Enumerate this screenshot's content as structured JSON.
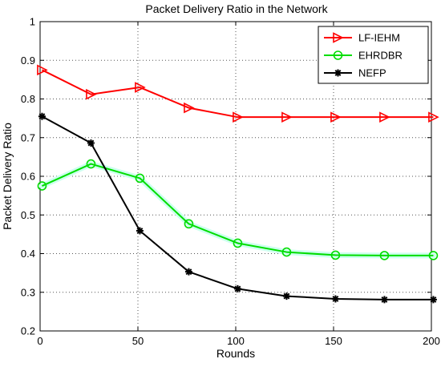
{
  "chart_data": {
    "type": "line",
    "title": "Packet Delivery Ratio in the Network",
    "xlabel": "Rounds",
    "ylabel": "Packet Delivery Ratio",
    "xlim": [
      0,
      200
    ],
    "ylim": [
      0.2,
      1
    ],
    "x_ticks": [
      "0",
      "50",
      "100",
      "150",
      "200"
    ],
    "y_ticks": [
      "0.2",
      "0.3",
      "0.4",
      "0.5",
      "0.6",
      "0.7",
      "0.8",
      "0.9",
      "1"
    ],
    "grid": true,
    "legend_position": "top-right",
    "x": [
      1,
      26,
      51,
      76,
      101,
      126,
      151,
      176,
      201
    ],
    "series": [
      {
        "name": "LF-IEHM",
        "color": "#ff0000",
        "marker": "triangle-right",
        "values": [
          0.875,
          0.812,
          0.83,
          0.777,
          0.753,
          0.753,
          0.753,
          0.753,
          0.753
        ]
      },
      {
        "name": "EHRDBR",
        "color": "#00dd00",
        "marker": "circle",
        "values": [
          0.575,
          0.632,
          0.595,
          0.477,
          0.427,
          0.404,
          0.396,
          0.395,
          0.395
        ]
      },
      {
        "name": "NEFP",
        "color": "#000000",
        "marker": "asterisk",
        "values": [
          0.755,
          0.686,
          0.459,
          0.353,
          0.309,
          0.29,
          0.283,
          0.281,
          0.281
        ]
      }
    ]
  }
}
